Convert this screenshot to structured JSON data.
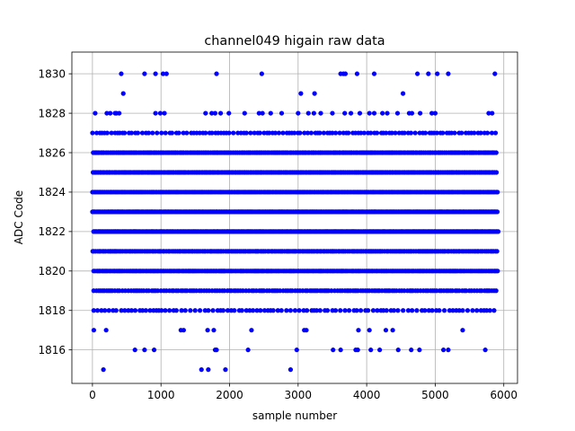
{
  "chart_data": {
    "type": "scatter",
    "title": "channel049 higain raw data",
    "xlabel": "sample number",
    "ylabel": "ADC Code",
    "xlim": [
      -300,
      6200
    ],
    "ylim": [
      1814.3,
      1831.1
    ],
    "x_ticks": [
      0,
      1000,
      2000,
      3000,
      4000,
      5000,
      6000
    ],
    "x_tick_labels": [
      "0",
      "1000",
      "2000",
      "3000",
      "4000",
      "5000",
      "6000"
    ],
    "y_ticks": [
      1816,
      1818,
      1820,
      1822,
      1824,
      1826,
      1828,
      1830
    ],
    "y_tick_labels": [
      "1816",
      "1818",
      "1820",
      "1822",
      "1824",
      "1826",
      "1828",
      "1830"
    ],
    "grid": true,
    "marker_color": "#0000ff",
    "series": [
      {
        "values_by_level": {
          "1815": [
            160,
            1590,
            1690,
            1940,
            2890
          ],
          "1816": [
            620,
            760,
            900,
            1790,
            1810,
            2270,
            2980,
            3510,
            3620,
            3840,
            3870,
            4060,
            4190,
            4460,
            4650,
            4770,
            5120,
            5190,
            5730
          ],
          "1817": [
            20,
            200,
            1290,
            1330,
            1680,
            1770,
            2320,
            3090,
            3120,
            3880,
            4040,
            4280,
            4380,
            5400
          ],
          "1828": [
            40,
            210,
            260,
            330,
            350,
            390,
            920,
            990,
            1050,
            1650,
            1740,
            1790,
            1870,
            1990,
            2220,
            2430,
            2480,
            2600,
            2760,
            3000,
            3150,
            3230,
            3330,
            3500,
            3680,
            3770,
            3900,
            4040,
            4110,
            4230,
            4300,
            4450,
            4620,
            4660,
            4780,
            4950,
            5000,
            5780,
            5830
          ],
          "1829": [
            450,
            3040,
            3240,
            4530
          ],
          "1830": [
            420,
            760,
            920,
            1030,
            1080,
            1810,
            2470,
            3620,
            3660,
            3690,
            3860,
            4110,
            4740,
            4900,
            5030,
            5190,
            5870
          ]
        }
      }
    ]
  }
}
